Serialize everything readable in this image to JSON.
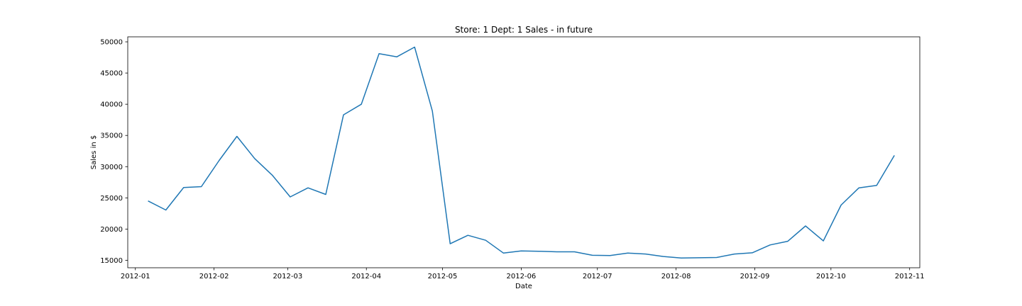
{
  "chart_data": {
    "type": "line",
    "title": "Store: 1 Dept: 1 Sales - in future",
    "xlabel": "Date",
    "ylabel": "Sales in $",
    "x_ticks": [
      "2012-01",
      "2012-02",
      "2012-03",
      "2012-04",
      "2012-05",
      "2012-06",
      "2012-07",
      "2012-08",
      "2012-09",
      "2012-10",
      "2012-11"
    ],
    "y_ticks": [
      15000,
      20000,
      25000,
      30000,
      35000,
      40000,
      45000,
      50000
    ],
    "xlim": [
      "2011-12-29",
      "2012-11-05"
    ],
    "ylim": [
      13800,
      50800
    ],
    "grid": false,
    "line_color": "#1f77b4",
    "series": [
      {
        "x": [
          "2012-01-06",
          "2012-01-13",
          "2012-01-20",
          "2012-01-27",
          "2012-02-03",
          "2012-02-10",
          "2012-02-17",
          "2012-02-24",
          "2012-03-02",
          "2012-03-09",
          "2012-03-16",
          "2012-03-23",
          "2012-03-30",
          "2012-04-06",
          "2012-04-13",
          "2012-04-20",
          "2012-04-27",
          "2012-05-04",
          "2012-05-11",
          "2012-05-18",
          "2012-05-25",
          "2012-06-01",
          "2012-06-08",
          "2012-06-15",
          "2012-06-22",
          "2012-06-29",
          "2012-07-06",
          "2012-07-13",
          "2012-07-20",
          "2012-07-27",
          "2012-08-03",
          "2012-08-10",
          "2012-08-17",
          "2012-08-24",
          "2012-08-31",
          "2012-09-07",
          "2012-09-14",
          "2012-09-21",
          "2012-09-28",
          "2012-10-05",
          "2012-10-12",
          "2012-10-19",
          "2012-10-26"
        ],
        "values": [
          24500,
          23050,
          26650,
          26800,
          31000,
          34850,
          31300,
          28600,
          25150,
          26600,
          25550,
          38300,
          40000,
          48100,
          47600,
          49150,
          38900,
          17650,
          19000,
          18200,
          16150,
          16500,
          16450,
          16350,
          16350,
          15800,
          15750,
          16150,
          16000,
          15600,
          15350,
          15400,
          15450,
          16000,
          16200,
          17450,
          18050,
          20500,
          18100,
          23850,
          26600,
          27000,
          31800
        ]
      }
    ]
  }
}
